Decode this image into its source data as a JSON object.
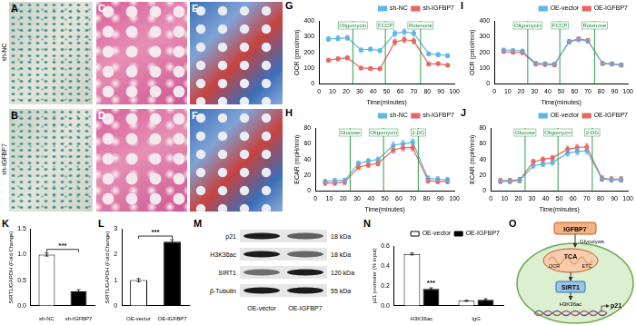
{
  "images": {
    "rows": [
      {
        "label": "sh-NC",
        "panels": [
          "A",
          "C",
          "E"
        ]
      },
      {
        "label": "sh-IGFBP7",
        "panels": [
          "B",
          "D",
          "F"
        ]
      }
    ]
  },
  "chart_data": [
    {
      "panel": "G",
      "type": "line",
      "x_label": "Time(minutes)",
      "y_label": "OCR (pmol/min)",
      "x": [
        7,
        14,
        21,
        31,
        38,
        45,
        56,
        63,
        70,
        81,
        88,
        95
      ],
      "series": [
        {
          "name": "sh-NC",
          "color": "#5cb8e6",
          "marker": "circle",
          "line_style": "solid",
          "values": [
            285,
            288,
            292,
            215,
            220,
            210,
            320,
            330,
            322,
            190,
            185,
            178
          ],
          "errors": [
            15,
            15,
            15,
            12,
            12,
            12,
            18,
            18,
            18,
            12,
            12,
            12
          ]
        },
        {
          "name": "sh-IGFBP7",
          "color": "#e8675f",
          "marker": "circle",
          "line_style": "solid",
          "values": [
            150,
            158,
            165,
            100,
            97,
            95,
            265,
            280,
            272,
            125,
            128,
            118
          ],
          "errors": [
            12,
            12,
            12,
            10,
            10,
            10,
            18,
            18,
            18,
            10,
            10,
            10
          ]
        }
      ],
      "annotations": [
        {
          "text": "Oligomycin",
          "x": 25
        },
        {
          "text": "FCCP",
          "x": 49
        },
        {
          "text": "Rotenone",
          "x": 75
        }
      ],
      "xlim": [
        0,
        100
      ],
      "xticks": [
        0,
        10,
        20,
        30,
        40,
        50,
        60,
        70,
        80,
        90,
        100
      ],
      "ylim": [
        0,
        400
      ],
      "yticks": [
        0,
        100,
        200,
        300,
        400
      ],
      "grid": false,
      "legend": "top-right"
    },
    {
      "panel": "H",
      "type": "line",
      "x_label": "Time(minutes)",
      "y_label": "ECAR (mpH/min)",
      "x": [
        7,
        14,
        21,
        31,
        38,
        45,
        56,
        63,
        70,
        81,
        88,
        95
      ],
      "series": [
        {
          "name": "sh-NC",
          "color": "#5cb8e6",
          "marker": "circle",
          "line_style": "solid",
          "values": [
            12,
            13,
            13,
            35,
            38,
            40,
            58,
            60,
            62,
            16,
            15,
            14
          ],
          "errors": [
            3,
            3,
            3,
            3,
            3,
            3,
            4,
            4,
            4,
            3,
            3,
            3
          ]
        },
        {
          "name": "sh-IGFBP7",
          "color": "#e8675f",
          "marker": "circle",
          "line_style": "solid",
          "values": [
            10,
            10,
            11,
            30,
            33,
            35,
            52,
            55,
            55,
            13,
            12,
            12
          ],
          "errors": [
            3,
            3,
            3,
            3,
            3,
            3,
            4,
            4,
            4,
            3,
            3,
            3
          ]
        }
      ],
      "annotations": [
        {
          "text": "Glucose",
          "x": 25
        },
        {
          "text": "Oligomycin",
          "x": 49
        },
        {
          "text": "2-DG",
          "x": 74
        }
      ],
      "xlim": [
        0,
        100
      ],
      "xticks": [
        0,
        10,
        20,
        30,
        40,
        50,
        60,
        70,
        80,
        90,
        100
      ],
      "ylim": [
        0,
        80
      ],
      "yticks": [
        0,
        20,
        40,
        60,
        80
      ],
      "grid": false,
      "legend": "top-right"
    },
    {
      "panel": "I",
      "type": "line",
      "x_label": "Time(minutes)",
      "y_label": "OCR (pmol/min)",
      "x": [
        7,
        14,
        21,
        31,
        38,
        45,
        56,
        63,
        70,
        81,
        88,
        95
      ],
      "series": [
        {
          "name": "OE-vector",
          "color": "#5cb8e6",
          "marker": "circle",
          "line_style": "solid",
          "values": [
            215,
            212,
            208,
            130,
            128,
            125,
            265,
            280,
            270,
            130,
            128,
            120
          ],
          "errors": [
            10,
            10,
            10,
            10,
            10,
            10,
            12,
            12,
            12,
            10,
            10,
            10
          ]
        },
        {
          "name": "OE-IGFBP7",
          "color": "#e8675f",
          "marker": "circle",
          "line_style": "solid",
          "values": [
            205,
            200,
            198,
            125,
            122,
            120,
            270,
            285,
            275,
            128,
            125,
            118
          ],
          "errors": [
            10,
            10,
            10,
            10,
            10,
            10,
            12,
            12,
            12,
            10,
            10,
            10
          ]
        }
      ],
      "annotations": [
        {
          "text": "Oligomycin",
          "x": 25
        },
        {
          "text": "FCCP",
          "x": 49
        },
        {
          "text": "Rotenone",
          "x": 75
        }
      ],
      "xlim": [
        0,
        100
      ],
      "xticks": [
        0,
        10,
        20,
        30,
        40,
        50,
        60,
        70,
        80,
        90,
        100
      ],
      "ylim": [
        0,
        400
      ],
      "yticks": [
        0,
        100,
        200,
        300,
        400
      ],
      "grid": false,
      "legend": "top-right"
    },
    {
      "panel": "J",
      "type": "line",
      "x_label": "Time(minutes)",
      "y_label": "ECAR (mpH/min)",
      "x": [
        7,
        14,
        21,
        31,
        38,
        45,
        56,
        63,
        70,
        81,
        88,
        95
      ],
      "series": [
        {
          "name": "OE-vector",
          "color": "#5cb8e6",
          "marker": "circle",
          "line_style": "solid",
          "values": [
            12,
            12,
            13,
            32,
            34,
            36,
            48,
            50,
            51,
            15,
            14,
            14
          ],
          "errors": [
            3,
            3,
            3,
            3,
            3,
            3,
            4,
            4,
            4,
            3,
            3,
            3
          ]
        },
        {
          "name": "OE-IGFBP7",
          "color": "#e8675f",
          "marker": "circle",
          "line_style": "solid",
          "values": [
            13,
            13,
            14,
            37,
            40,
            42,
            53,
            55,
            56,
            16,
            15,
            15
          ],
          "errors": [
            3,
            3,
            3,
            3,
            3,
            3,
            4,
            4,
            4,
            3,
            3,
            3
          ]
        }
      ],
      "annotations": [
        {
          "text": "Glucose",
          "x": 25
        },
        {
          "text": "Oligomycin",
          "x": 49
        },
        {
          "text": "2-DG",
          "x": 74
        }
      ],
      "xlim": [
        0,
        100
      ],
      "xticks": [
        0,
        10,
        20,
        30,
        40,
        50,
        60,
        70,
        80,
        90,
        100
      ],
      "ylim": [
        0,
        80
      ],
      "yticks": [
        0,
        20,
        40,
        60,
        80
      ],
      "grid": false,
      "legend": "top-right"
    },
    {
      "panel": "K",
      "type": "bar",
      "y_label": "SIRT1/GAPDH (Fold Change)",
      "categories": [
        "sh-NC",
        "sh-IGFBP7"
      ],
      "values": [
        1.0,
        0.28
      ],
      "errors": [
        0.03,
        0.03
      ],
      "colors": [
        "#ffffff",
        "#000000"
      ],
      "annotations": [
        {
          "text": "***",
          "categories": [
            "sh-NC",
            "sh-IGFBP7"
          ]
        }
      ],
      "ylim": [
        0,
        1.5
      ],
      "yticks": [
        {
          "value": 0,
          "label": "0.0"
        },
        {
          "value": 0.5,
          "label": "0.5"
        },
        {
          "value": 1,
          "label": "1.0"
        },
        {
          "value": 1.5,
          "label": "1.5"
        }
      ],
      "grid": false
    },
    {
      "panel": "L",
      "type": "bar",
      "y_label": "SIRT1/GAPDH (Fold Change)",
      "categories": [
        "OE-vector",
        "OE-IGFBP7"
      ],
      "values": [
        1.0,
        2.5
      ],
      "errors": [
        0.06,
        0.08
      ],
      "colors": [
        "#ffffff",
        "#000000"
      ],
      "annotations": [
        {
          "text": "***",
          "categories": [
            "OE-vector",
            "OE-IGFBP7"
          ]
        }
      ],
      "ylim": [
        0,
        3
      ],
      "yticks": [
        0,
        1,
        2,
        3
      ],
      "grid": false
    },
    {
      "panel": "N",
      "type": "bar",
      "y_label": "p21 promoter (% input)",
      "categories": [
        "H3K36ac",
        "IgG"
      ],
      "series": [
        {
          "name": "OE-vector",
          "color": "#ffffff",
          "values": [
            0.52,
            0.05
          ],
          "errors": [
            0.01,
            0.005
          ]
        },
        {
          "name": "OE-IGFBP7",
          "color": "#000000",
          "values": [
            0.17,
            0.06
          ],
          "errors": [
            0.01,
            0.01
          ]
        }
      ],
      "annotations": [
        {
          "text": "***",
          "category": "H3K36ac",
          "series": "OE-IGFBP7"
        }
      ],
      "ylim": [
        0,
        0.6
      ],
      "yticks": [
        {
          "value": 0,
          "label": "0.0"
        },
        {
          "value": 0.2,
          "label": "0.2"
        },
        {
          "value": 0.4,
          "label": "0.4"
        },
        {
          "value": 0.6,
          "label": "0.6"
        }
      ],
      "grid": false,
      "legend": "top-right"
    }
  ],
  "blot": {
    "panel": "M",
    "lanes": [
      "OE-vector",
      "OE-IGFBP7"
    ],
    "rows": [
      {
        "name": "p21",
        "size": "18 kDa"
      },
      {
        "name": "H3K36ac",
        "size": "18 kDa"
      },
      {
        "name": "SIRT1",
        "size": "120 kDa"
      },
      {
        "name": "β-Tubulin",
        "size": "55 kDa"
      }
    ]
  },
  "diagram": {
    "panel": "O",
    "ligand": "IGFBP7",
    "pathway": "Glycolysis",
    "cycle": "TCA",
    "respiration": "OCR",
    "chain": "ETC",
    "enzyme": "SIRT1",
    "mark": "H3K36ac",
    "gene": "p21"
  }
}
